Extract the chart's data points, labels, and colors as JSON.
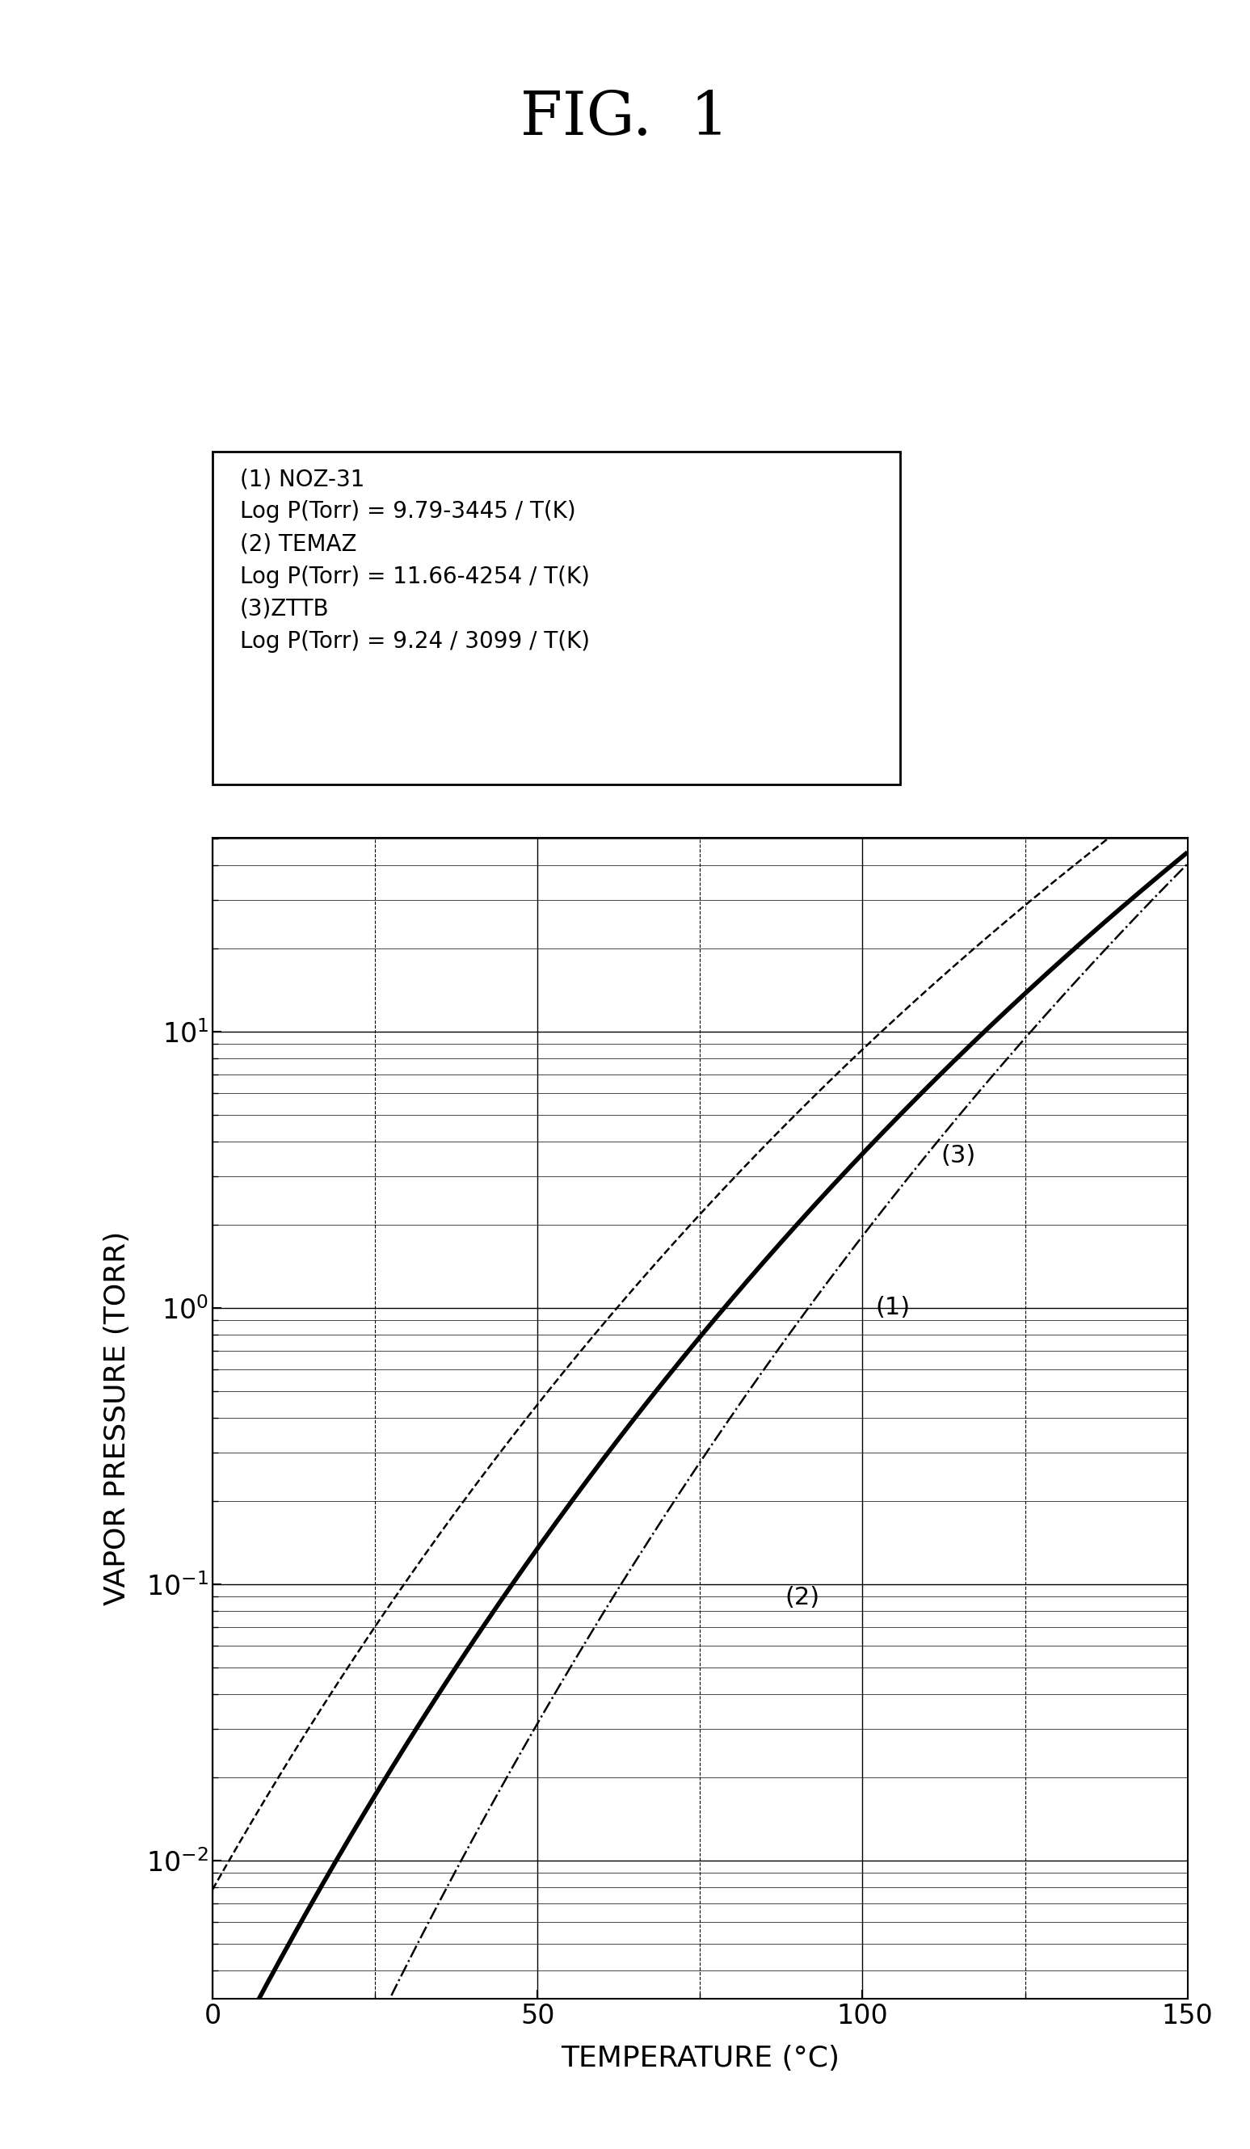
{
  "title": "FIG.  1",
  "xlabel": "TEMPERATURE (°C)",
  "ylabel": "VAPOR PRESSURE (TORR)",
  "xlim": [
    0,
    150
  ],
  "ylim_log": [
    -2.5,
    1.7
  ],
  "curves": [
    {
      "label": "(1)",
      "name": "NOZ-31",
      "A": 9.79,
      "B": 3445,
      "style": "solid",
      "color": "#000000",
      "linewidth": 4.0
    },
    {
      "label": "(2)",
      "name": "TEMAZ",
      "A": 11.66,
      "B": 4254,
      "style": "dashdot",
      "color": "#000000",
      "linewidth": 1.8
    },
    {
      "label": "(3)",
      "name": "ZTTB",
      "A": 9.24,
      "B": 3099,
      "style": "dashed",
      "color": "#000000",
      "linewidth": 1.8
    }
  ],
  "legend_text": "(1) NOZ-31\nLog P(Torr) = 9.79-3445 / T(K)\n(2) TEMAZ\nLog P(Torr) = 11.66-4254 / T(K)\n(3)ZTTB\nLog P(Torr) = 9.24 / 3099 / T(K)",
  "ann_3": {
    "text": "(3)",
    "x": 112,
    "y_log": 0.55
  },
  "ann_1": {
    "text": "(1)",
    "x": 102,
    "y_log": 0.0
  },
  "ann_2": {
    "text": "(2)",
    "x": 88,
    "y_log": -1.05
  },
  "background_color": "#ffffff",
  "title_fontsize": 54,
  "label_fontsize": 26,
  "tick_fontsize": 24,
  "ann_fontsize": 22,
  "legend_fontsize": 20
}
